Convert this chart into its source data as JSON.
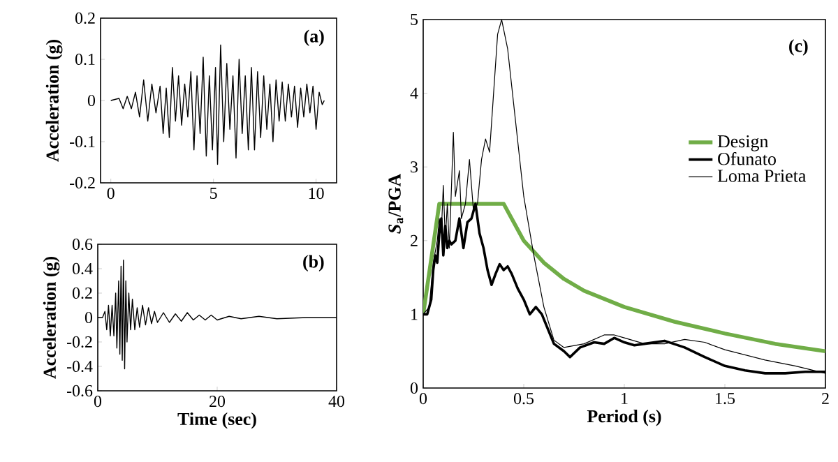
{
  "chart_data": [
    {
      "type": "line",
      "ylabel": "Acceleration (g)",
      "annotations": [
        "(a)"
      ],
      "marker": "none",
      "line_style": "solid",
      "xlim": [
        -0.5,
        11
      ],
      "xticks": [
        0,
        5,
        10
      ],
      "ylim": [
        -0.2,
        0.2
      ],
      "yticks": [
        -0.2,
        -0.1,
        0,
        0.1,
        0.2
      ],
      "x": [
        0,
        0.4,
        0.6,
        0.8,
        1.0,
        1.2,
        1.4,
        1.6,
        1.8,
        2.0,
        2.2,
        2.4,
        2.55,
        2.7,
        2.85,
        3.0,
        3.15,
        3.3,
        3.45,
        3.6,
        3.75,
        3.9,
        4.05,
        4.2,
        4.35,
        4.5,
        4.65,
        4.8,
        4.95,
        5.1,
        5.2,
        5.35,
        5.5,
        5.65,
        5.8,
        5.95,
        6.1,
        6.25,
        6.4,
        6.55,
        6.7,
        6.85,
        7.0,
        7.15,
        7.3,
        7.45,
        7.6,
        7.75,
        7.9,
        8.05,
        8.2,
        8.35,
        8.5,
        8.65,
        8.8,
        8.95,
        9.1,
        9.25,
        9.4,
        9.55,
        9.7,
        9.85,
        10.0,
        10.15,
        10.3,
        10.4
      ],
      "series": [
        {
          "color": "#000000",
          "values": [
            0,
            0.005,
            -0.02,
            0.01,
            -0.02,
            0.02,
            -0.04,
            0.05,
            -0.05,
            0.04,
            -0.03,
            0.035,
            -0.08,
            0.03,
            -0.09,
            0.08,
            -0.05,
            0.06,
            -0.06,
            0.04,
            -0.04,
            0.07,
            -0.12,
            0.06,
            -0.08,
            0.105,
            -0.135,
            0.06,
            -0.12,
            0.08,
            -0.155,
            0.135,
            -0.1,
            0.09,
            -0.07,
            0.06,
            -0.14,
            0.1,
            -0.08,
            0.06,
            -0.12,
            0.08,
            -0.12,
            0.07,
            -0.09,
            0.06,
            -0.07,
            0.04,
            -0.1,
            0.05,
            -0.05,
            0.045,
            -0.05,
            0.04,
            -0.04,
            0.035,
            -0.065,
            0.03,
            -0.04,
            0.04,
            -0.03,
            0.035,
            -0.07,
            0.02,
            -0.01,
            0
          ]
        }
      ]
    },
    {
      "type": "line",
      "xlabel": "Time (sec)",
      "ylabel": "Acceleration (g)",
      "annotations": [
        "(b)"
      ],
      "marker": "none",
      "line_style": "solid",
      "xlim": [
        0,
        40
      ],
      "xticks": [
        0,
        20,
        40
      ],
      "ylim": [
        -0.6,
        0.6
      ],
      "yticks": [
        -0.6,
        -0.4,
        -0.2,
        0,
        0.2,
        0.4,
        0.6
      ],
      "x": [
        0,
        0.8,
        1.2,
        1.5,
        1.8,
        2.1,
        2.4,
        2.7,
        3.0,
        3.2,
        3.5,
        3.7,
        3.9,
        4.1,
        4.3,
        4.5,
        4.7,
        4.9,
        5.2,
        5.5,
        5.8,
        6.2,
        6.6,
        7.0,
        7.5,
        8,
        8.5,
        9,
        9.5,
        10,
        11,
        12,
        13,
        14,
        15,
        16,
        17,
        18,
        19,
        20,
        22,
        24,
        27,
        30,
        35,
        40
      ],
      "series": [
        {
          "color": "#000000",
          "values": [
            0,
            0,
            0.05,
            -0.1,
            0.1,
            -0.15,
            0.1,
            -0.15,
            0.2,
            -0.25,
            0.3,
            -0.3,
            0.42,
            -0.35,
            0.47,
            -0.42,
            0.3,
            -0.2,
            0.2,
            -0.1,
            0.15,
            -0.1,
            0.08,
            -0.08,
            0.1,
            -0.06,
            0.08,
            -0.05,
            0.05,
            -0.04,
            0.04,
            -0.04,
            0.03,
            -0.03,
            0.04,
            -0.02,
            0.02,
            -0.02,
            0.02,
            -0.02,
            0.01,
            -0.01,
            0.01,
            -0.01,
            0,
            0
          ]
        }
      ]
    },
    {
      "type": "line",
      "xlabel": "Period (s)",
      "ylabel": "*S*$_{a}$/PGA",
      "annotations": [
        "(c)"
      ],
      "marker": "none",
      "line_style": "solid",
      "legend": "right",
      "xlim": [
        0,
        2
      ],
      "xticks": [
        0,
        0.5,
        1,
        1.5,
        2
      ],
      "ylim": [
        0,
        5
      ],
      "yticks": [
        0,
        1,
        2,
        3,
        4,
        5
      ],
      "series": [
        {
          "name": "Design",
          "color": "#70ad47",
          "x": [
            0,
            0.08,
            0.4,
            0.5,
            0.6,
            0.7,
            0.8,
            1.0,
            1.25,
            1.5,
            1.75,
            2.0
          ],
          "values": [
            1,
            2.5,
            2.5,
            2.0,
            1.7,
            1.48,
            1.32,
            1.1,
            0.9,
            0.74,
            0.6,
            0.5
          ]
        },
        {
          "name": "Ofunato",
          "color": "#000000",
          "x": [
            0,
            0.02,
            0.04,
            0.05,
            0.06,
            0.07,
            0.08,
            0.09,
            0.1,
            0.11,
            0.12,
            0.13,
            0.14,
            0.16,
            0.18,
            0.2,
            0.22,
            0.24,
            0.26,
            0.28,
            0.3,
            0.32,
            0.34,
            0.36,
            0.38,
            0.4,
            0.42,
            0.44,
            0.47,
            0.5,
            0.53,
            0.56,
            0.59,
            0.62,
            0.65,
            0.7,
            0.73,
            0.78,
            0.85,
            0.9,
            0.95,
            1.0,
            1.05,
            1.1,
            1.2,
            1.3,
            1.4,
            1.5,
            1.6,
            1.7,
            1.8,
            1.9,
            2.0
          ],
          "values": [
            1,
            1.0,
            1.2,
            1.6,
            1.8,
            1.7,
            2.1,
            2.3,
            1.8,
            2.2,
            1.9,
            2.0,
            1.95,
            2.0,
            2.3,
            1.9,
            2.25,
            2.3,
            2.5,
            2.1,
            1.9,
            1.6,
            1.4,
            1.55,
            1.68,
            1.6,
            1.65,
            1.55,
            1.35,
            1.2,
            1.0,
            1.1,
            1.0,
            0.8,
            0.6,
            0.5,
            0.42,
            0.55,
            0.62,
            0.6,
            0.68,
            0.62,
            0.58,
            0.6,
            0.64,
            0.55,
            0.42,
            0.3,
            0.24,
            0.2,
            0.2,
            0.22,
            0.22
          ]
        },
        {
          "name": "Loma Prieta",
          "color": "#000000",
          "x": [
            0,
            0.03,
            0.05,
            0.07,
            0.08,
            0.09,
            0.1,
            0.11,
            0.12,
            0.13,
            0.15,
            0.16,
            0.18,
            0.19,
            0.21,
            0.23,
            0.25,
            0.27,
            0.29,
            0.31,
            0.33,
            0.35,
            0.37,
            0.39,
            0.42,
            0.46,
            0.5,
            0.55,
            0.6,
            0.65,
            0.7,
            0.8,
            0.9,
            0.95,
            1.0,
            1.1,
            1.2,
            1.3,
            1.4,
            1.5,
            1.7,
            1.85,
            2.0
          ],
          "values": [
            1,
            1.1,
            1.7,
            2.0,
            2.3,
            2.1,
            2.75,
            2.0,
            2.5,
            1.9,
            3.47,
            2.6,
            2.95,
            2.3,
            2.5,
            3.1,
            2.4,
            2.5,
            3.1,
            3.38,
            3.2,
            4.0,
            4.8,
            5.0,
            4.6,
            3.6,
            2.6,
            1.8,
            1.1,
            0.65,
            0.55,
            0.6,
            0.72,
            0.72,
            0.68,
            0.6,
            0.6,
            0.66,
            0.62,
            0.52,
            0.38,
            0.3,
            0.2
          ]
        }
      ]
    }
  ]
}
